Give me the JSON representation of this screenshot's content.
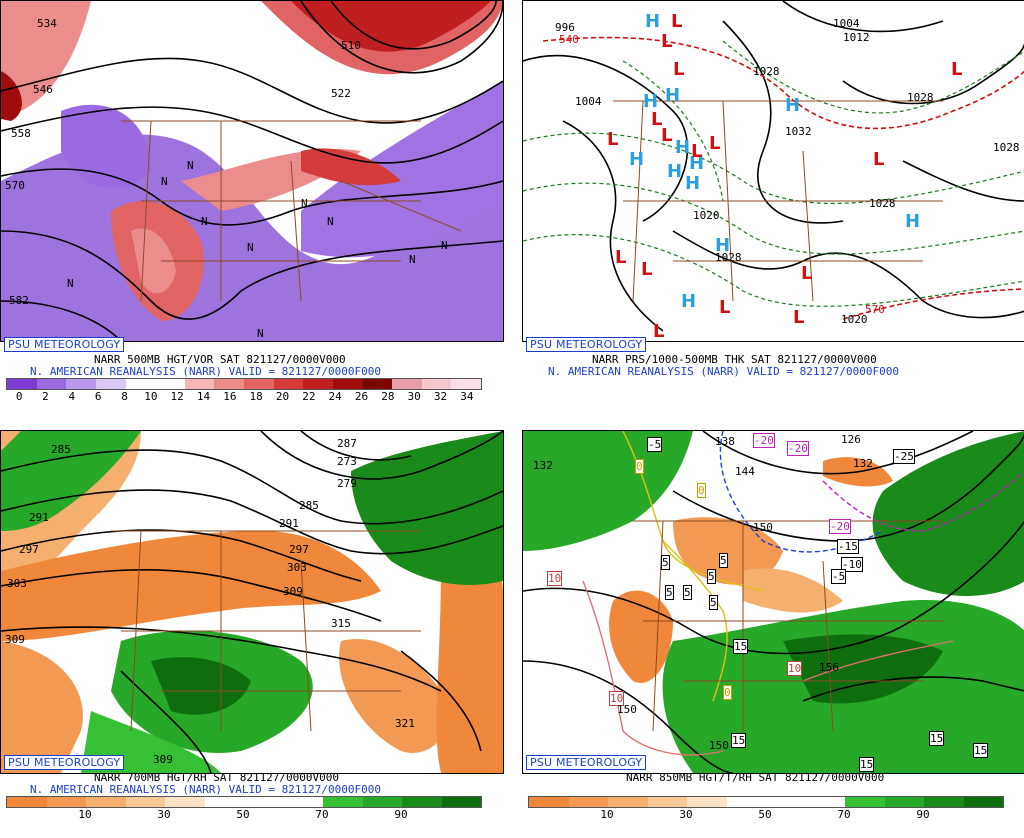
{
  "panels": [
    {
      "badge": "PSU METEOROLOGY",
      "line1": "NARR 500MB HGT/VOR SAT 821127/0000V000",
      "line2": "N. AMERICAN REANALYSIS (NARR) VALID = 821127/0000F000",
      "colorbar": [
        "#7a3ccf",
        "#9a6ae0",
        "#b89ae8",
        "#d8c8f2",
        "#ffffff",
        "#ffffff",
        "#f4b6b6",
        "#ec8d8d",
        "#e06464",
        "#d43c3c",
        "#bf1f1f",
        "#9e0c0c",
        "#7a0505",
        "#e5a0a8",
        "#f5c8d0",
        "#fae0e6"
      ],
      "ticks": [
        "0",
        "2",
        "4",
        "6",
        "8",
        "10",
        "12",
        "14",
        "16",
        "18",
        "20",
        "22",
        "24",
        "26",
        "28",
        "30",
        "32",
        "34"
      ],
      "map_labels": [
        "534",
        "546",
        "558",
        "570",
        "582",
        "510",
        "522",
        "570",
        "N",
        "N",
        "N",
        "N",
        "N",
        "N",
        "N",
        "N",
        "N",
        "N"
      ]
    },
    {
      "badge": "PSU METEOROLOGY",
      "line1": "NARR PRS/1000-500MB THK SAT 821127/0000V000",
      "line2": "N. AMERICAN REANALYSIS (NARR) VALID = 821127/0000F000",
      "map_labels": [
        "996",
        "540",
        "1004",
        "1028",
        "1032",
        "1028",
        "1020",
        "1028",
        "1028",
        "1020",
        "1028",
        "570",
        "1004",
        "1012",
        "1020",
        "1028",
        "1028"
      ],
      "highs": [
        "H",
        "H",
        "H",
        "H",
        "H",
        "H",
        "H",
        "H",
        "H",
        "H",
        "H",
        "H"
      ],
      "lows": [
        "L",
        "L",
        "L",
        "L",
        "L",
        "L",
        "L",
        "L",
        "L",
        "L",
        "L",
        "L",
        "L",
        "L",
        "L",
        "L"
      ]
    },
    {
      "badge": "PSU METEOROLOGY",
      "line1": "NARR 700MB HGT/RH SAT 821127/0000V000",
      "line2": "N. AMERICAN REANALYSIS (NARR) VALID = 821127/0000F000",
      "colorbar": [
        "#f0883c",
        "#f29a54",
        "#f5b070",
        "#f8c896",
        "#fde3c6",
        "#ffffff",
        "#ffffff",
        "#ffffff",
        "#36c036",
        "#28a828",
        "#1a8a1a",
        "#0e6e0e"
      ],
      "ticks": [
        "10",
        "30",
        "50",
        "70",
        "90"
      ],
      "map_labels": [
        "285",
        "291",
        "297",
        "303",
        "309",
        "287",
        "273",
        "279",
        "285",
        "291",
        "297",
        "303",
        "309",
        "315",
        "321",
        "309"
      ]
    },
    {
      "badge": "PSU METEOROLOGY",
      "line1": "NARR 850MB HGT/T/RH SAT 821127/0000V000",
      "line2": "",
      "colorbar": [
        "#f0883c",
        "#f29a54",
        "#f5b070",
        "#f8c896",
        "#fde3c6",
        "#ffffff",
        "#ffffff",
        "#ffffff",
        "#36c036",
        "#28a828",
        "#1a8a1a",
        "#0e6e0e"
      ],
      "ticks": [
        "10",
        "30",
        "50",
        "70",
        "90"
      ],
      "map_labels": [
        "-5",
        "132",
        "138",
        "-20",
        "-20",
        "-25",
        "144",
        "-20",
        "-15",
        "-10",
        "-5",
        "150",
        "132",
        "126",
        "0",
        "0",
        "0",
        "5",
        "5",
        "5",
        "5",
        "5",
        "5",
        "10",
        "10",
        "10",
        "15",
        "15",
        "15",
        "15",
        "15",
        "150",
        "150",
        "156"
      ]
    }
  ]
}
